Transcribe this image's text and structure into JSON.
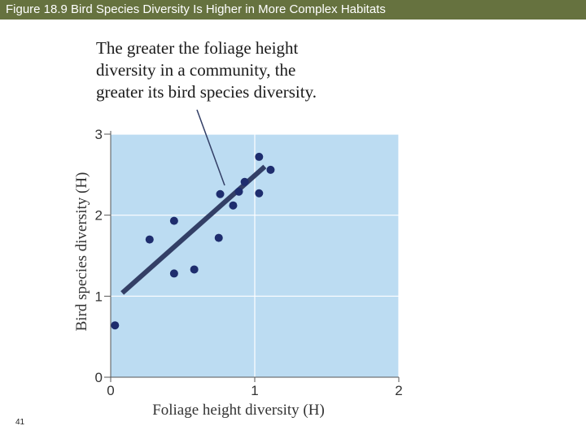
{
  "slide": {
    "title": "Figure 18.9 Bird Species Diversity Is Higher in More Complex Habitats",
    "annotation_lines": [
      "The greater the foliage height",
      "diversity in a community, the",
      "greater its bird species diversity."
    ],
    "slide_number": "41"
  },
  "colors": {
    "title_bar": "#66723f",
    "plot_background": "#bcdcf2",
    "points": "#1e2d6e",
    "trend_line": "#333f66"
  },
  "chart_data": {
    "type": "scatter",
    "title": "",
    "xlabel": "Foliage height diversity (H)",
    "ylabel": "Bird species diversity (H)",
    "xlim": [
      0,
      2
    ],
    "ylim": [
      0,
      3
    ],
    "x_ticks": [
      "0",
      "1",
      "2"
    ],
    "y_ticks": [
      "0",
      "1",
      "2",
      "3"
    ],
    "grid": true,
    "points": [
      {
        "x": 0.03,
        "y": 0.64
      },
      {
        "x": 0.27,
        "y": 1.7
      },
      {
        "x": 0.44,
        "y": 1.93
      },
      {
        "x": 0.44,
        "y": 1.28
      },
      {
        "x": 0.58,
        "y": 1.33
      },
      {
        "x": 0.75,
        "y": 1.72
      },
      {
        "x": 0.76,
        "y": 2.26
      },
      {
        "x": 0.85,
        "y": 2.12
      },
      {
        "x": 0.89,
        "y": 2.29
      },
      {
        "x": 0.93,
        "y": 2.41
      },
      {
        "x": 1.03,
        "y": 2.72
      },
      {
        "x": 1.03,
        "y": 2.27
      },
      {
        "x": 1.11,
        "y": 2.56
      }
    ],
    "trend_line": [
      {
        "x": 0.08,
        "y": 1.04
      },
      {
        "x": 1.07,
        "y": 2.6
      }
    ]
  }
}
